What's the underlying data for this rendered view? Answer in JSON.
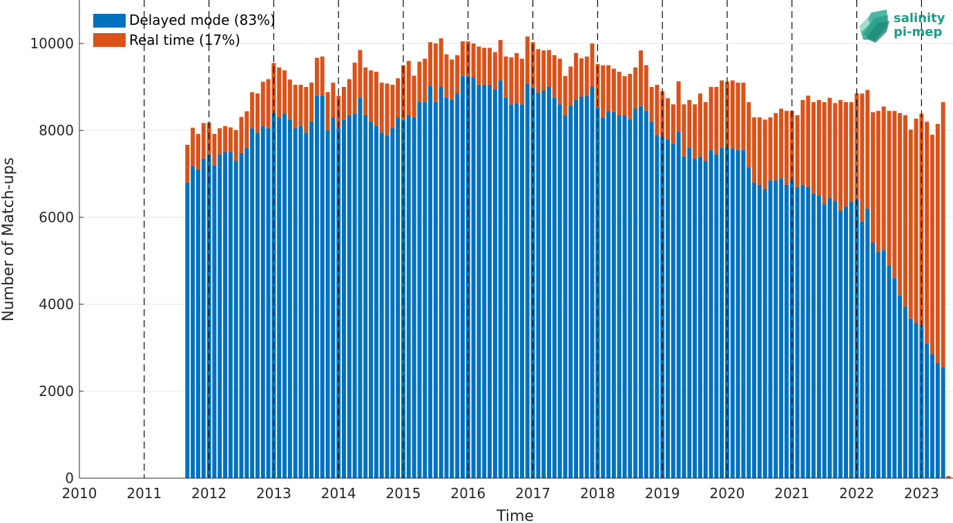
{
  "chart_data": {
    "type": "bar",
    "stacked": true,
    "xlabel": "Time",
    "ylabel": "Number of Match-ups",
    "xlim": [
      2010,
      2023.5
    ],
    "ylim": [
      0,
      11000
    ],
    "x_ticks": [
      "2010",
      "2011",
      "2012",
      "2013",
      "2014",
      "2015",
      "2016",
      "2017",
      "2018",
      "2019",
      "2020",
      "2021",
      "2022",
      "2023"
    ],
    "y_ticks": [
      "0",
      "2000",
      "4000",
      "6000",
      "8000",
      "10000"
    ],
    "grid": true,
    "year_boundary_lines": "dashed",
    "legend_position": "top-left",
    "start": "2011-09",
    "colors": {
      "delayed": "#0072bd",
      "realtime": "#d95319"
    },
    "series": [
      {
        "name": "Delayed mode (83%)",
        "values": [
          6800,
          7180,
          7100,
          7350,
          7450,
          7200,
          7450,
          7500,
          7500,
          7300,
          7480,
          7600,
          8050,
          7950,
          8100,
          8050,
          8400,
          8300,
          8380,
          8250,
          8050,
          8100,
          7950,
          8200,
          8800,
          8800,
          8000,
          8300,
          8050,
          8250,
          8350,
          8380,
          8750,
          8350,
          8200,
          8100,
          7950,
          7880,
          8050,
          8300,
          8250,
          8350,
          8300,
          8650,
          8650,
          9030,
          8650,
          9000,
          8750,
          8700,
          8850,
          9250,
          9250,
          9220,
          9050,
          9050,
          9050,
          8950,
          9150,
          8750,
          8600,
          8630,
          8600,
          9080,
          8980,
          8870,
          8920,
          9000,
          8750,
          8600,
          8350,
          8570,
          8700,
          8780,
          8800,
          9000,
          8530,
          8300,
          8450,
          8420,
          8350,
          8350,
          8250,
          8500,
          8560,
          8450,
          8200,
          7900,
          7850,
          7790,
          7700,
          7980,
          7400,
          7600,
          7350,
          7400,
          7300,
          7550,
          7450,
          7600,
          7620,
          7580,
          7550,
          7550,
          7150,
          6800,
          6750,
          6650,
          6850,
          6850,
          6900,
          6750,
          6850,
          6700,
          6750,
          6700,
          6550,
          6500,
          6300,
          6450,
          6380,
          6150,
          6250,
          6350,
          6400,
          5900,
          6200,
          5420,
          5200,
          5250,
          4900,
          4600,
          4200,
          3950,
          3670,
          3570,
          3500,
          3100,
          2850,
          2650,
          2550,
          0
        ]
      },
      {
        "name": "Real time (17%)",
        "values": [
          870,
          880,
          820,
          820,
          730,
          720,
          600,
          600,
          570,
          710,
          830,
          840,
          830,
          900,
          1020,
          1130,
          1150,
          1150,
          1000,
          920,
          1000,
          950,
          1050,
          900,
          870,
          900,
          880,
          800,
          750,
          750,
          830,
          1180,
          1100,
          1100,
          1180,
          1250,
          1150,
          1200,
          1000,
          900,
          1250,
          1250,
          960,
          930,
          1000,
          1000,
          1350,
          1120,
          1000,
          930,
          880,
          800,
          800,
          780,
          880,
          850,
          850,
          850,
          930,
          950,
          1080,
          1150,
          1050,
          1080,
          1050,
          1000,
          920,
          850,
          980,
          1050,
          900,
          900,
          1080,
          880,
          900,
          1000,
          1000,
          1200,
          1050,
          1000,
          1000,
          900,
          1050,
          950,
          1280,
          1050,
          800,
          1150,
          1050,
          950,
          900,
          1150,
          1200,
          1100,
          1250,
          1450,
          1350,
          1450,
          1550,
          1550,
          1500,
          1570,
          1550,
          1550,
          1500,
          1500,
          1550,
          1600,
          1450,
          1550,
          1600,
          1700,
          1600,
          1650,
          1950,
          2100,
          2100,
          2200,
          2350,
          2300,
          2250,
          2550,
          2400,
          2300,
          2450,
          2950,
          2730,
          3000,
          3250,
          3300,
          3550,
          3850,
          4200,
          4400,
          4350,
          4700,
          4880,
          5100,
          5050,
          5500,
          6100,
          50
        ]
      }
    ]
  },
  "logo": {
    "line1": "salinity",
    "line2": "pi-mep"
  }
}
